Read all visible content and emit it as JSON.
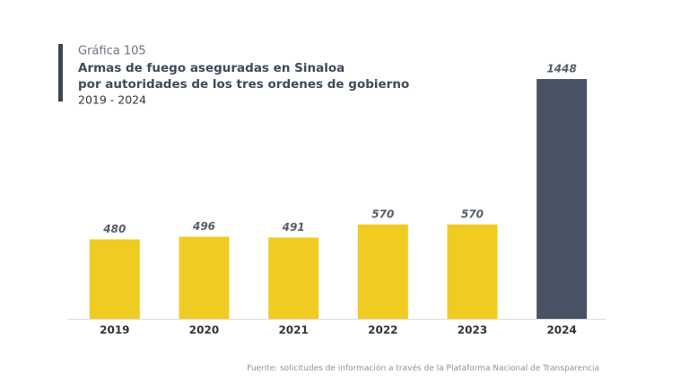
{
  "chart_data": {
    "type": "bar",
    "label": "Gráfica 105",
    "title": [
      "Armas de fuego aseguradas en Sinaloa",
      "por autoridades de los tres ordenes de gobierno"
    ],
    "subtitle": "2019 - 2024",
    "categories": [
      "2019",
      "2020",
      "2021",
      "2022",
      "2023",
      "2024"
    ],
    "values": [
      480,
      496,
      491,
      570,
      570,
      1448
    ],
    "colors": [
      "#f0cb22",
      "#f0cb22",
      "#f0cb22",
      "#f0cb22",
      "#f0cb22",
      "#4a5366"
    ],
    "source": "Fuente: solicitudes de información a través de la Plataforma Nacional de Transparencia"
  }
}
